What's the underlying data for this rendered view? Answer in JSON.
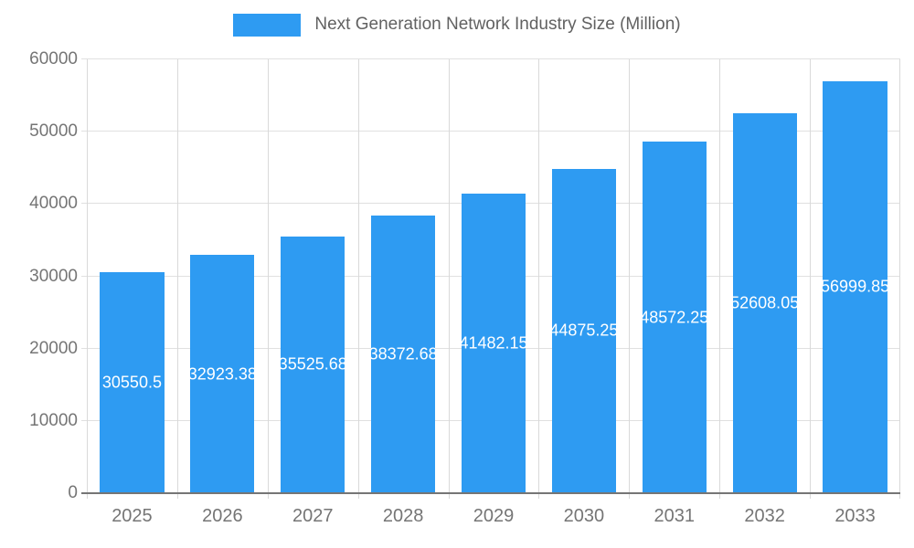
{
  "legend": {
    "label": "Next Generation Network Industry Size (Million)"
  },
  "chart_data": {
    "type": "bar",
    "title": "Next Generation Network Industry Size (Million)",
    "categories": [
      "2025",
      "2026",
      "2027",
      "2028",
      "2029",
      "2030",
      "2031",
      "2032",
      "2033"
    ],
    "values": [
      30550.5,
      32923.38,
      35525.68,
      38372.68,
      41482.15,
      44875.25,
      48572.25,
      52608.05,
      56999.85
    ],
    "value_labels": [
      "30550.5",
      "32923.38",
      "35525.68",
      "38372.68",
      "41482.15",
      "44875.25",
      "48572.25",
      "52608.05",
      "56999.85"
    ],
    "xlabel": "",
    "ylabel": "",
    "ylim": [
      0,
      60000
    ],
    "y_ticks": [
      0,
      10000,
      20000,
      30000,
      40000,
      50000,
      60000
    ],
    "grid": true,
    "legend_position": "top",
    "colors": {
      "bar": "#2e9bf2",
      "axis_text": "#757575",
      "legend_text": "#616161",
      "grid_line_h": "#e0e0e0",
      "grid_line_v": "#d9d9d9",
      "baseline": "#757575",
      "value_label": "#ffffff",
      "background": "#ffffff"
    }
  }
}
